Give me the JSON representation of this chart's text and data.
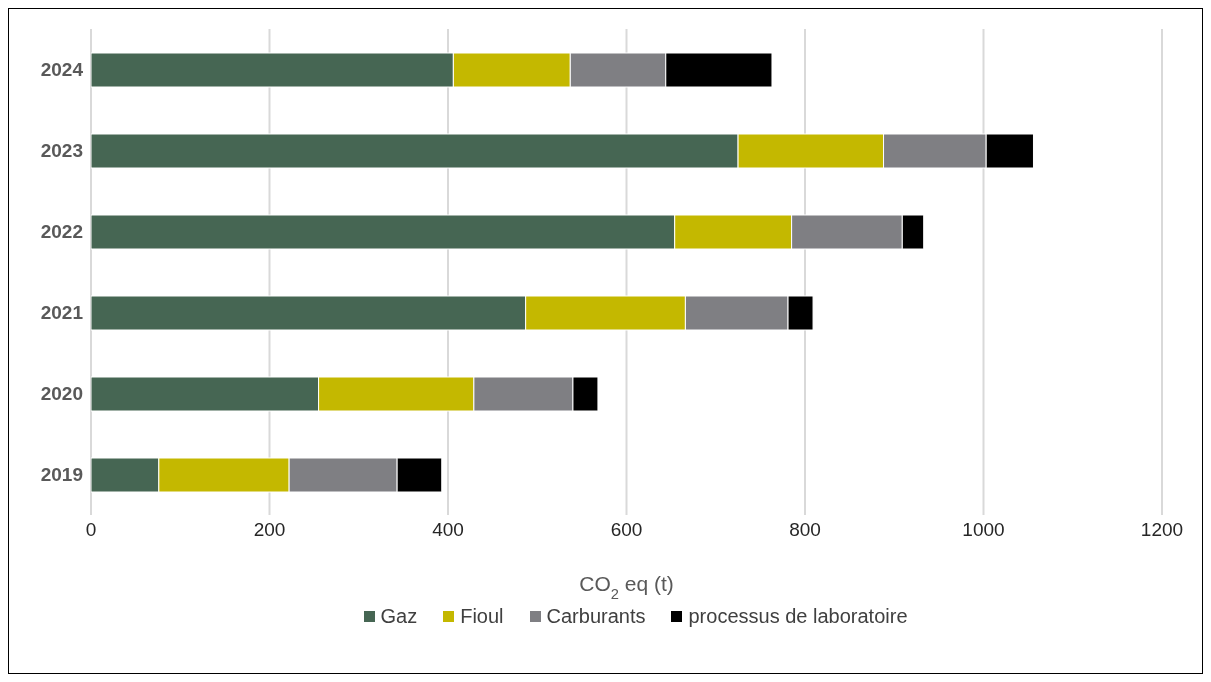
{
  "chart_data": {
    "type": "bar",
    "orientation": "horizontal",
    "stacked": true,
    "xlabel": "CO$_{2}$ eq (t)",
    "categories": [
      "2024",
      "2023",
      "2022",
      "2021",
      "2020",
      "2019"
    ],
    "series": [
      {
        "name": "Gaz",
        "color": "#466653",
        "values": [
          406,
          725,
          654,
          487,
          255,
          76
        ]
      },
      {
        "name": "Fioul",
        "color": "#c4b800",
        "values": [
          131,
          163,
          131,
          179,
          174,
          146
        ]
      },
      {
        "name": "Carburants",
        "color": "#7f7f83",
        "values": [
          107,
          115,
          124,
          115,
          111,
          121
        ]
      },
      {
        "name": "processus de laboratoire",
        "color": "#000000",
        "values": [
          119,
          53,
          24,
          28,
          28,
          50
        ]
      }
    ],
    "xlim": [
      0,
      1200
    ],
    "xticks": [
      0,
      200,
      400,
      600,
      800,
      1000,
      1200
    ],
    "grid": "x",
    "legend": "bottom"
  }
}
